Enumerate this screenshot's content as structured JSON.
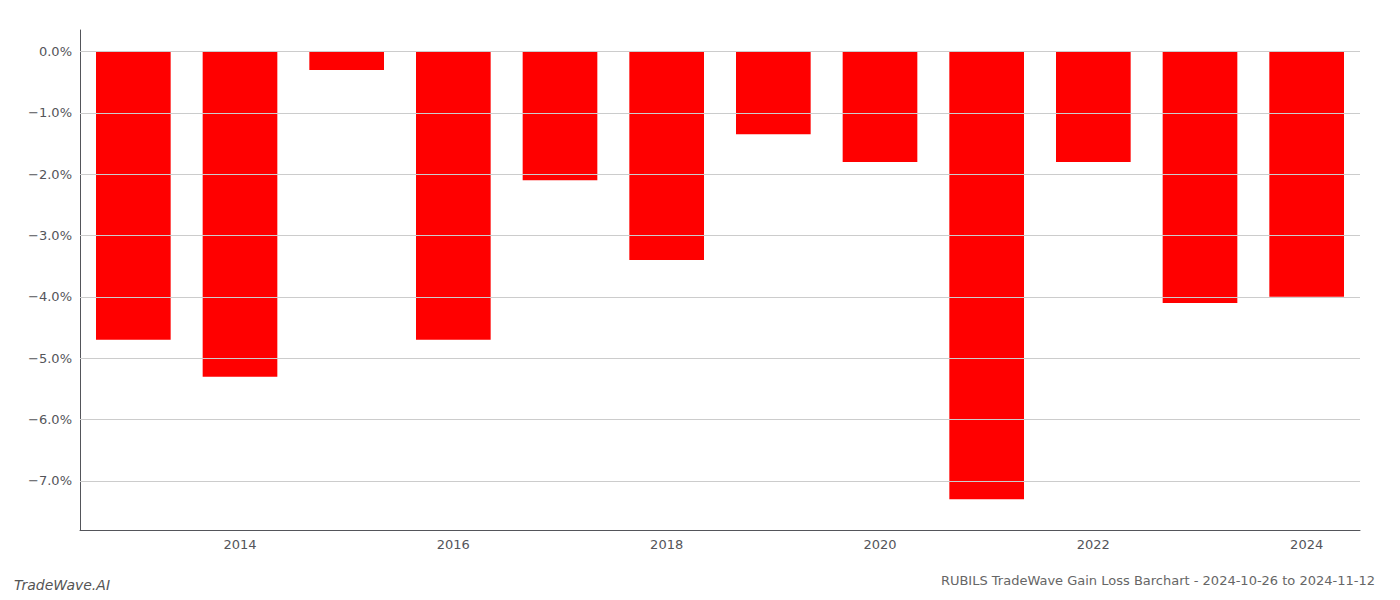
{
  "chart_data": {
    "type": "bar",
    "title": "RUBILS TradeWave Gain Loss Barchart - 2024-10-26 to 2024-11-12",
    "annotations": [
      "TradeWave.AI"
    ],
    "categories": [
      null,
      "2014",
      null,
      "2016",
      null,
      "2018",
      null,
      "2020",
      null,
      "2022",
      null,
      "2024"
    ],
    "values": [
      -4.7,
      -5.3,
      -0.3,
      -4.7,
      -2.1,
      -3.4,
      -1.35,
      -1.8,
      -7.3,
      -1.8,
      -4.1,
      -4.0
    ],
    "color": "#ff0000",
    "ylim": [
      -7.8,
      0.35
    ],
    "yticks": [
      {
        "value": 0.0,
        "label": "0.0%"
      },
      {
        "value": -1.0,
        "label": "−1.0%"
      },
      {
        "value": -2.0,
        "label": "−2.0%"
      },
      {
        "value": -3.0,
        "label": "−3.0%"
      },
      {
        "value": -4.0,
        "label": "−4.0%"
      },
      {
        "value": -5.0,
        "label": "−5.0%"
      },
      {
        "value": -6.0,
        "label": "−6.0%"
      },
      {
        "value": -7.0,
        "label": "−7.0%"
      }
    ],
    "grid": true,
    "grid_color": "#cccccc"
  }
}
